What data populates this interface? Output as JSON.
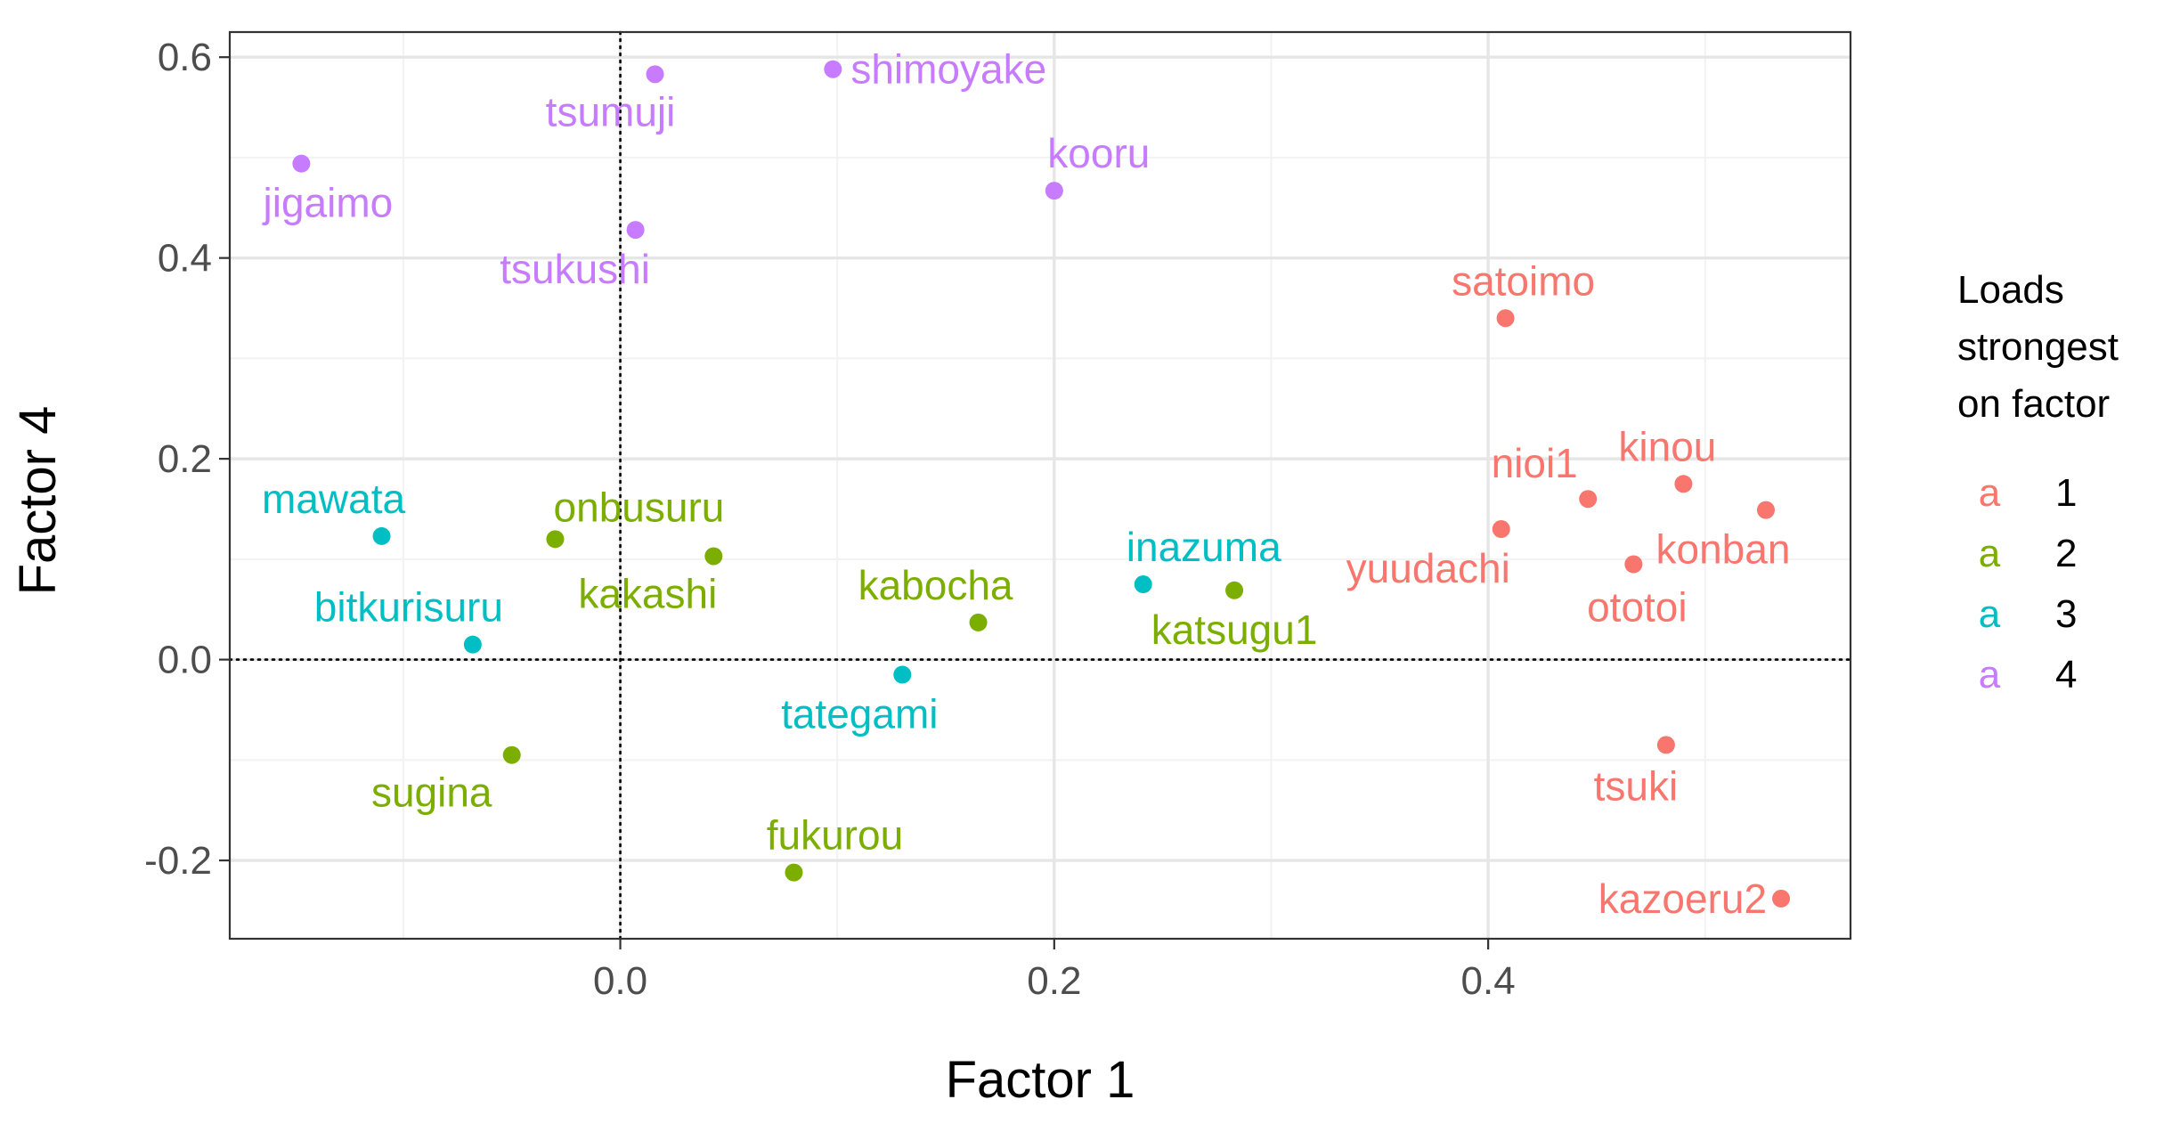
{
  "chart_data": {
    "type": "scatter",
    "title": "",
    "xlabel": "Factor 1",
    "ylabel": "Factor 4",
    "xlim": [
      -0.18,
      0.567
    ],
    "ylim": [
      -0.278,
      0.625
    ],
    "x_ticks": [
      0.0,
      0.2,
      0.4
    ],
    "x_tick_labels": [
      "0.0",
      "0.2",
      "0.4"
    ],
    "y_ticks": [
      -0.2,
      0.0,
      0.2,
      0.4,
      0.6
    ],
    "y_tick_labels": [
      "-0.2",
      "0.0",
      "0.2",
      "0.4",
      "0.6"
    ],
    "grid": true,
    "reference_lines": {
      "x": 0,
      "y": 0,
      "style": "dotted"
    },
    "legend": {
      "title_lines": [
        "Loads",
        "strongest",
        "on factor"
      ],
      "key_glyph": "a",
      "placement": "right",
      "entries": [
        {
          "label": "1",
          "color": "#F8766D"
        },
        {
          "label": "2",
          "color": "#7CAE00"
        },
        {
          "label": "3",
          "color": "#00BFC4"
        },
        {
          "label": "4",
          "color": "#C77CFF"
        }
      ]
    },
    "series": [
      {
        "name": "1",
        "color": "#F8766D",
        "points": [
          {
            "label": "satoimo",
            "x": 0.408,
            "y": 0.34,
            "label_pos": "above"
          },
          {
            "label": "nioi1",
            "x": 0.446,
            "y": 0.16,
            "label_pos": "upper-left"
          },
          {
            "label": "kinou",
            "x": 0.49,
            "y": 0.175,
            "label_pos": "above"
          },
          {
            "label": "yuudachi",
            "x": 0.406,
            "y": 0.13,
            "label_pos": "lower-left"
          },
          {
            "label": "ototoi",
            "x": 0.467,
            "y": 0.095,
            "label_pos": "below"
          },
          {
            "label": "konban",
            "x": 0.528,
            "y": 0.149,
            "label_pos": "lower-left"
          },
          {
            "label": "tsuki",
            "x": 0.482,
            "y": -0.085,
            "label_pos": "below"
          },
          {
            "label": "kazoeru2",
            "x": 0.535,
            "y": -0.238,
            "label_pos": "left"
          }
        ]
      },
      {
        "name": "2",
        "color": "#7CAE00",
        "points": [
          {
            "label": "onbusuru",
            "x": -0.03,
            "y": 0.12,
            "label_pos": "above-right"
          },
          {
            "label": "kakashi",
            "x": 0.043,
            "y": 0.103,
            "label_pos": "below-left"
          },
          {
            "label": "kabocha",
            "x": 0.165,
            "y": 0.037,
            "label_pos": "above-left"
          },
          {
            "label": "katsugu1",
            "x": 0.283,
            "y": 0.069,
            "label_pos": "below"
          },
          {
            "label": "sugina",
            "x": -0.05,
            "y": -0.095,
            "label_pos": "below-left"
          },
          {
            "label": "fukurou",
            "x": 0.08,
            "y": -0.212,
            "label_pos": "above-right"
          }
        ]
      },
      {
        "name": "3",
        "color": "#00BFC4",
        "points": [
          {
            "label": "mawata",
            "x": -0.11,
            "y": 0.123,
            "label_pos": "above-left"
          },
          {
            "label": "bitkurisuru",
            "x": -0.068,
            "y": 0.015,
            "label_pos": "above-left"
          },
          {
            "label": "inazuma",
            "x": 0.241,
            "y": 0.075,
            "label_pos": "above-right"
          },
          {
            "label": "tategami",
            "x": 0.13,
            "y": -0.015,
            "label_pos": "below-left"
          }
        ]
      },
      {
        "name": "4",
        "color": "#C77CFF",
        "points": [
          {
            "label": "shimoyake",
            "x": 0.098,
            "y": 0.588,
            "label_pos": "right"
          },
          {
            "label": "tsumuji",
            "x": 0.016,
            "y": 0.583,
            "label_pos": "below-left"
          },
          {
            "label": "jigaimo",
            "x": -0.147,
            "y": 0.494,
            "label_pos": "below"
          },
          {
            "label": "kooru",
            "x": 0.2,
            "y": 0.467,
            "label_pos": "above-right"
          },
          {
            "label": "tsukushi",
            "x": 0.007,
            "y": 0.428,
            "label_pos": "below-left"
          }
        ]
      }
    ]
  }
}
